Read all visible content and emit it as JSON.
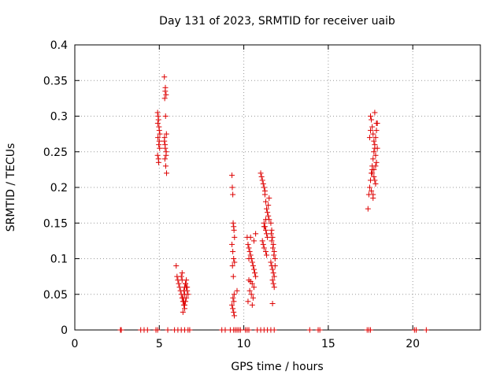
{
  "chart_data": {
    "type": "scatter",
    "title": "Day 131 of 2023, SRMTID for receiver uaib",
    "xlabel": "GPS time / hours",
    "ylabel": "SRMTID / TECUs",
    "xlim": [
      0,
      24
    ],
    "ylim": [
      0,
      0.4
    ],
    "xticks": [
      0,
      5,
      10,
      15,
      20
    ],
    "xtick_labels": [
      "0",
      "5",
      "10",
      "15",
      "20"
    ],
    "yticks": [
      0,
      0.05,
      0.1,
      0.15,
      0.2,
      0.25,
      0.3,
      0.35,
      0.4
    ],
    "ytick_labels": [
      "0",
      "0.05",
      "0.1",
      "0.15",
      "0.2",
      "0.25",
      "0.3",
      "0.35",
      "0.4"
    ],
    "grid": true,
    "marker": "plus",
    "marker_color": "#dd0000",
    "series": [
      {
        "name": "SRMTID",
        "x": [
          4.9,
          4.95,
          5.0,
          4.92,
          4.97,
          5.02,
          4.9,
          4.95,
          5.0,
          4.93,
          4.98,
          5.03,
          4.91,
          4.96,
          5.3,
          5.35,
          5.4,
          5.32,
          5.37,
          5.42,
          5.3,
          5.35,
          5.4,
          5.33,
          5.38,
          5.43,
          5.31,
          5.36,
          5.41,
          5.34,
          6.0,
          6.05,
          6.1,
          6.15,
          6.2,
          6.25,
          6.3,
          6.35,
          6.4,
          6.45,
          6.5,
          6.55,
          6.6,
          6.65,
          6.7,
          6.3,
          6.35,
          6.4,
          6.45,
          6.5,
          6.55,
          6.6,
          6.4,
          6.45,
          6.5,
          6.55,
          6.35,
          6.6,
          6.65,
          6.5,
          9.3,
          9.32,
          9.35,
          9.37,
          9.4,
          9.42,
          9.45,
          9.3,
          9.35,
          9.4,
          9.45,
          9.33,
          9.38,
          9.43,
          9.36,
          9.41,
          9.3,
          9.35,
          9.4,
          9.44,
          9.6,
          10.2,
          10.25,
          10.3,
          10.35,
          10.4,
          10.45,
          10.5,
          10.55,
          10.6,
          10.65,
          10.7,
          10.3,
          10.4,
          10.5,
          10.6,
          10.35,
          10.45,
          10.55,
          10.25,
          10.5,
          10.6,
          10.7,
          10.4,
          10.3,
          11.0,
          11.05,
          11.1,
          11.15,
          11.2,
          11.25,
          11.3,
          11.35,
          11.4,
          11.45,
          11.5,
          11.2,
          11.25,
          11.3,
          11.35,
          11.4,
          11.1,
          11.15,
          11.2,
          11.3,
          11.35,
          11.45,
          11.5,
          11.25,
          11.3,
          11.2,
          11.6,
          11.65,
          11.7,
          11.75,
          11.8,
          11.85,
          11.6,
          11.65,
          11.7,
          11.75,
          11.8,
          11.7,
          11.75,
          11.8,
          11.65,
          11.72,
          11.78,
          11.62,
          11.85,
          11.7,
          17.35,
          17.4,
          17.45,
          17.5,
          17.55,
          17.6,
          17.65,
          17.7,
          17.75,
          17.8,
          17.85,
          17.9,
          17.5,
          17.55,
          17.6,
          17.65,
          17.7,
          17.75,
          17.8,
          17.85,
          17.6,
          17.7,
          17.8,
          17.55,
          17.65,
          17.75,
          17.85,
          17.5,
          17.6,
          17.7,
          17.8,
          17.45,
          17.9,
          17.65,
          17.75,
          2.7,
          2.75,
          3.9,
          4.1,
          4.3,
          4.8,
          4.9,
          5.5,
          5.9,
          6.1,
          6.3,
          6.5,
          6.7,
          6.8,
          8.7,
          8.9,
          9.2,
          9.4,
          9.5,
          9.6,
          9.7,
          9.8,
          10.1,
          10.2,
          10.3,
          10.8,
          11.0,
          11.2,
          11.4,
          11.6,
          11.8,
          13.9,
          14.4,
          14.5,
          17.3,
          17.4,
          17.5,
          20.1,
          20.2,
          20.8
        ],
        "y": [
          0.305,
          0.295,
          0.28,
          0.27,
          0.26,
          0.255,
          0.245,
          0.24,
          0.265,
          0.3,
          0.285,
          0.275,
          0.29,
          0.235,
          0.355,
          0.335,
          0.33,
          0.325,
          0.3,
          0.275,
          0.265,
          0.255,
          0.245,
          0.24,
          0.23,
          0.22,
          0.27,
          0.34,
          0.25,
          0.26,
          0.09,
          0.075,
          0.07,
          0.065,
          0.06,
          0.055,
          0.05,
          0.045,
          0.04,
          0.035,
          0.03,
          0.065,
          0.06,
          0.055,
          0.05,
          0.075,
          0.07,
          0.045,
          0.04,
          0.06,
          0.065,
          0.07,
          0.025,
          0.055,
          0.05,
          0.04,
          0.08,
          0.045,
          0.06,
          0.035,
          0.217,
          0.2,
          0.19,
          0.15,
          0.145,
          0.14,
          0.13,
          0.12,
          0.11,
          0.1,
          0.095,
          0.09,
          0.075,
          0.05,
          0.045,
          0.04,
          0.035,
          0.03,
          0.025,
          0.02,
          0.055,
          0.13,
          0.12,
          0.115,
          0.11,
          0.105,
          0.1,
          0.095,
          0.09,
          0.085,
          0.08,
          0.075,
          0.07,
          0.068,
          0.065,
          0.06,
          0.055,
          0.05,
          0.045,
          0.04,
          0.035,
          0.125,
          0.135,
          0.13,
          0.1,
          0.22,
          0.215,
          0.21,
          0.205,
          0.2,
          0.19,
          0.18,
          0.17,
          0.165,
          0.16,
          0.155,
          0.15,
          0.145,
          0.14,
          0.135,
          0.13,
          0.125,
          0.12,
          0.115,
          0.11,
          0.105,
          0.175,
          0.185,
          0.195,
          0.155,
          0.145,
          0.15,
          0.14,
          0.13,
          0.12,
          0.11,
          0.1,
          0.095,
          0.09,
          0.085,
          0.08,
          0.075,
          0.07,
          0.065,
          0.06,
          0.125,
          0.115,
          0.105,
          0.135,
          0.09,
          0.037,
          0.17,
          0.19,
          0.2,
          0.21,
          0.22,
          0.23,
          0.24,
          0.25,
          0.26,
          0.27,
          0.28,
          0.29,
          0.3,
          0.295,
          0.285,
          0.275,
          0.265,
          0.255,
          0.245,
          0.235,
          0.225,
          0.215,
          0.205,
          0.195,
          0.185,
          0.305,
          0.29,
          0.28,
          0.22,
          0.225,
          0.23,
          0.27,
          0.255,
          0.19,
          0.21,
          0,
          0,
          0,
          0,
          0,
          0,
          0,
          0,
          0,
          0,
          0,
          0,
          0,
          0,
          0,
          0,
          0,
          0,
          0,
          0,
          0,
          0,
          0,
          0,
          0,
          0,
          0,
          0,
          0,
          0,
          0,
          0,
          0,
          0,
          0,
          0,
          0,
          0,
          0,
          0
        ]
      }
    ]
  }
}
